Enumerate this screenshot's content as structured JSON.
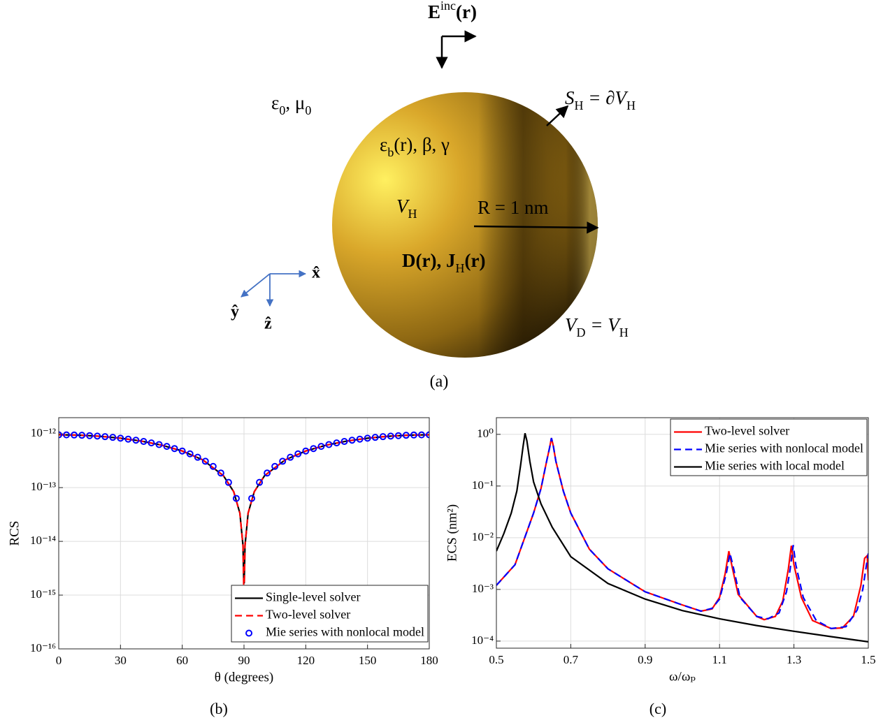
{
  "diagram": {
    "incident_field": [
      "E",
      "inc",
      "(r)"
    ],
    "background": [
      "ε",
      "0",
      ", μ",
      "0"
    ],
    "surface": [
      "S",
      "H",
      " = ∂V",
      "H"
    ],
    "material": [
      "ε",
      "b",
      "(r), β, γ"
    ],
    "volume": [
      "V",
      "H"
    ],
    "radius": "R = 1 nm",
    "fields": [
      "D(r), J",
      "H",
      "(r)"
    ],
    "domain": [
      "V",
      "D",
      " = V",
      "H"
    ],
    "axes": {
      "x": "x̂",
      "y": "ŷ",
      "z": "ẑ"
    },
    "caption": "(a)"
  },
  "chart_data": [
    {
      "type": "line",
      "caption": "(b)",
      "xlabel": "θ (degrees)",
      "ylabel": "RCS",
      "xlim": [
        0,
        180
      ],
      "xticks": [
        0,
        30,
        60,
        90,
        120,
        150,
        180
      ],
      "yscale": "log",
      "ylim": [
        1e-16,
        2e-12
      ],
      "yticks": [
        {
          "value": 1e-16,
          "label": "10⁻¹⁶"
        },
        {
          "value": 1e-15,
          "label": "10⁻¹⁵"
        },
        {
          "value": 1e-14,
          "label": "10⁻¹⁴"
        },
        {
          "value": 1e-13,
          "label": "10⁻¹³"
        },
        {
          "value": 1e-12,
          "label": "10⁻¹²"
        }
      ],
      "grid": true,
      "legend": "lower right",
      "series": [
        {
          "name": "Single-level solver",
          "color": "#000000",
          "line_style": "solid",
          "x": [
            0,
            10,
            20,
            30,
            40,
            50,
            60,
            70,
            80,
            85,
            88,
            89.5,
            89.9,
            90.1,
            90.5,
            92,
            95,
            100,
            110,
            120,
            130,
            140,
            150,
            160,
            170,
            180
          ],
          "values": [
            9.6e-13,
            9.45e-13,
            9.02e-13,
            8.31e-13,
            7.35e-13,
            6.17e-13,
            4.8e-13,
            3.28e-13,
            1.67e-13,
            8.4e-14,
            3.35e-14,
            8.4e-15,
            1.7e-15,
            1.7e-15,
            8.4e-15,
            3.35e-14,
            8.4e-14,
            1.67e-13,
            3.28e-13,
            4.8e-13,
            6.17e-13,
            7.35e-13,
            8.31e-13,
            9.02e-13,
            9.45e-13,
            9.6e-13
          ]
        },
        {
          "name": "Two-level solver",
          "color": "#ff0000",
          "line_style": "dashed",
          "x": [
            0,
            10,
            20,
            30,
            40,
            50,
            60,
            70,
            80,
            85,
            88,
            89.5,
            89.9,
            90.1,
            90.5,
            92,
            95,
            100,
            110,
            120,
            130,
            140,
            150,
            160,
            170,
            180
          ],
          "values": [
            9.6e-13,
            9.45e-13,
            9.02e-13,
            8.31e-13,
            7.35e-13,
            6.17e-13,
            4.8e-13,
            3.28e-13,
            1.67e-13,
            8.4e-14,
            3.35e-14,
            8.4e-15,
            1.2e-15,
            1.2e-15,
            8.4e-15,
            3.35e-14,
            8.4e-14,
            1.67e-13,
            3.28e-13,
            4.8e-13,
            6.17e-13,
            7.35e-13,
            8.31e-13,
            9.02e-13,
            9.45e-13,
            9.6e-13
          ]
        },
        {
          "name": "Mie series with nonlocal model",
          "color": "#0000ff",
          "line_style": "none",
          "marker": "circle",
          "x": [
            0,
            3.75,
            7.5,
            11.25,
            15,
            18.75,
            22.5,
            26.25,
            30,
            33.75,
            37.5,
            41.25,
            45,
            48.75,
            52.5,
            56.25,
            60,
            63.75,
            67.5,
            71.25,
            75,
            78.75,
            82.5,
            86.25,
            93.75,
            97.5,
            101.25,
            105,
            108.75,
            112.5,
            116.25,
            120,
            123.75,
            127.5,
            131.25,
            135,
            138.75,
            142.5,
            146.25,
            150,
            153.75,
            157.5,
            161.25,
            165,
            168.75,
            172.5,
            176.25,
            180
          ],
          "values": [
            9.6e-13,
            9.58e-13,
            9.52e-13,
            9.42e-13,
            9.27e-13,
            9.09e-13,
            8.87e-13,
            8.61e-13,
            8.31e-13,
            7.98e-13,
            7.62e-13,
            7.22e-13,
            6.79e-13,
            6.33e-13,
            5.84e-13,
            5.33e-13,
            4.8e-13,
            4.25e-13,
            3.67e-13,
            3.09e-13,
            2.48e-13,
            1.87e-13,
            1.25e-13,
            6.3e-14,
            6.3e-14,
            1.25e-13,
            1.87e-13,
            2.48e-13,
            3.09e-13,
            3.67e-13,
            4.25e-13,
            4.8e-13,
            5.33e-13,
            5.84e-13,
            6.33e-13,
            6.79e-13,
            7.22e-13,
            7.62e-13,
            7.98e-13,
            8.31e-13,
            8.61e-13,
            8.87e-13,
            9.09e-13,
            9.27e-13,
            9.42e-13,
            9.52e-13,
            9.58e-13,
            9.6e-13
          ]
        }
      ]
    },
    {
      "type": "line",
      "caption": "(c)",
      "xlabel": "ω/ωₚ",
      "ylabel": "ECS (nm²)",
      "xlim": [
        0.5,
        1.5
      ],
      "xticks": [
        0.5,
        0.7,
        0.9,
        1.1,
        1.3,
        1.5
      ],
      "yscale": "log",
      "ylim": [
        7.3e-05,
        2.1
      ],
      "yticks": [
        {
          "value": 0.0001,
          "label": "10⁻⁴"
        },
        {
          "value": 0.001,
          "label": "10⁻³"
        },
        {
          "value": 0.01,
          "label": "10⁻²"
        },
        {
          "value": 0.1,
          "label": "10⁻¹"
        },
        {
          "value": 1,
          "label": "10⁰"
        }
      ],
      "grid": true,
      "legend": "upper right",
      "series": [
        {
          "name": "Two-level solver",
          "color": "#ff0000",
          "line_style": "solid",
          "x": [
            0.5,
            0.55,
            0.6,
            0.62,
            0.635,
            0.643,
            0.648,
            0.653,
            0.66,
            0.68,
            0.7,
            0.75,
            0.8,
            0.9,
            1.0,
            1.05,
            1.08,
            1.1,
            1.115,
            1.125,
            1.135,
            1.15,
            1.2,
            1.22,
            1.25,
            1.27,
            1.285,
            1.293,
            1.3,
            1.32,
            1.35,
            1.4,
            1.43,
            1.46,
            1.48,
            1.49,
            1.497,
            1.5
          ],
          "values": [
            0.0012,
            0.003,
            0.03,
            0.09,
            0.3,
            0.55,
            0.85,
            0.6,
            0.3,
            0.08,
            0.03,
            0.006,
            0.0025,
            0.0009,
            0.0005,
            0.00038,
            0.00042,
            0.0007,
            0.002,
            0.0055,
            0.0025,
            0.0008,
            0.0003,
            0.00026,
            0.0003,
            0.0006,
            0.0025,
            0.007,
            0.003,
            0.0007,
            0.00025,
            0.000175,
            0.00018,
            0.0003,
            0.0012,
            0.004,
            0.0045,
            0.0015
          ]
        },
        {
          "name": "Mie series with nonlocal model",
          "color": "#0000ff",
          "line_style": "dashed",
          "x": [
            0.5,
            0.55,
            0.6,
            0.62,
            0.635,
            0.643,
            0.648,
            0.653,
            0.66,
            0.68,
            0.7,
            0.75,
            0.8,
            0.9,
            1.0,
            1.05,
            1.08,
            1.1,
            1.118,
            1.128,
            1.138,
            1.155,
            1.2,
            1.23,
            1.26,
            1.28,
            1.29,
            1.298,
            1.305,
            1.325,
            1.36,
            1.4,
            1.44,
            1.47,
            1.485,
            1.495,
            1.5
          ],
          "values": [
            0.0012,
            0.003,
            0.03,
            0.09,
            0.3,
            0.55,
            0.85,
            0.6,
            0.3,
            0.08,
            0.03,
            0.006,
            0.0025,
            0.0009,
            0.0005,
            0.00038,
            0.00043,
            0.00065,
            0.002,
            0.005,
            0.0025,
            0.0007,
            0.0003,
            0.00027,
            0.00035,
            0.0009,
            0.0025,
            0.0072,
            0.003,
            0.0007,
            0.00025,
            0.000175,
            0.00019,
            0.0004,
            0.001,
            0.003,
            0.005
          ]
        },
        {
          "name": "Mie series with local model",
          "color": "#000000",
          "line_style": "solid",
          "x": [
            0.5,
            0.52,
            0.54,
            0.555,
            0.565,
            0.572,
            0.577,
            0.582,
            0.59,
            0.6,
            0.62,
            0.65,
            0.7,
            0.8,
            0.9,
            1.0,
            1.1,
            1.2,
            1.3,
            1.4,
            1.5
          ],
          "values": [
            0.0055,
            0.012,
            0.03,
            0.08,
            0.25,
            0.6,
            1.05,
            0.75,
            0.3,
            0.12,
            0.045,
            0.016,
            0.0043,
            0.0013,
            0.00065,
            0.00039,
            0.00027,
            0.0002,
            0.000155,
            0.000122,
            9.7e-05
          ]
        }
      ]
    }
  ]
}
